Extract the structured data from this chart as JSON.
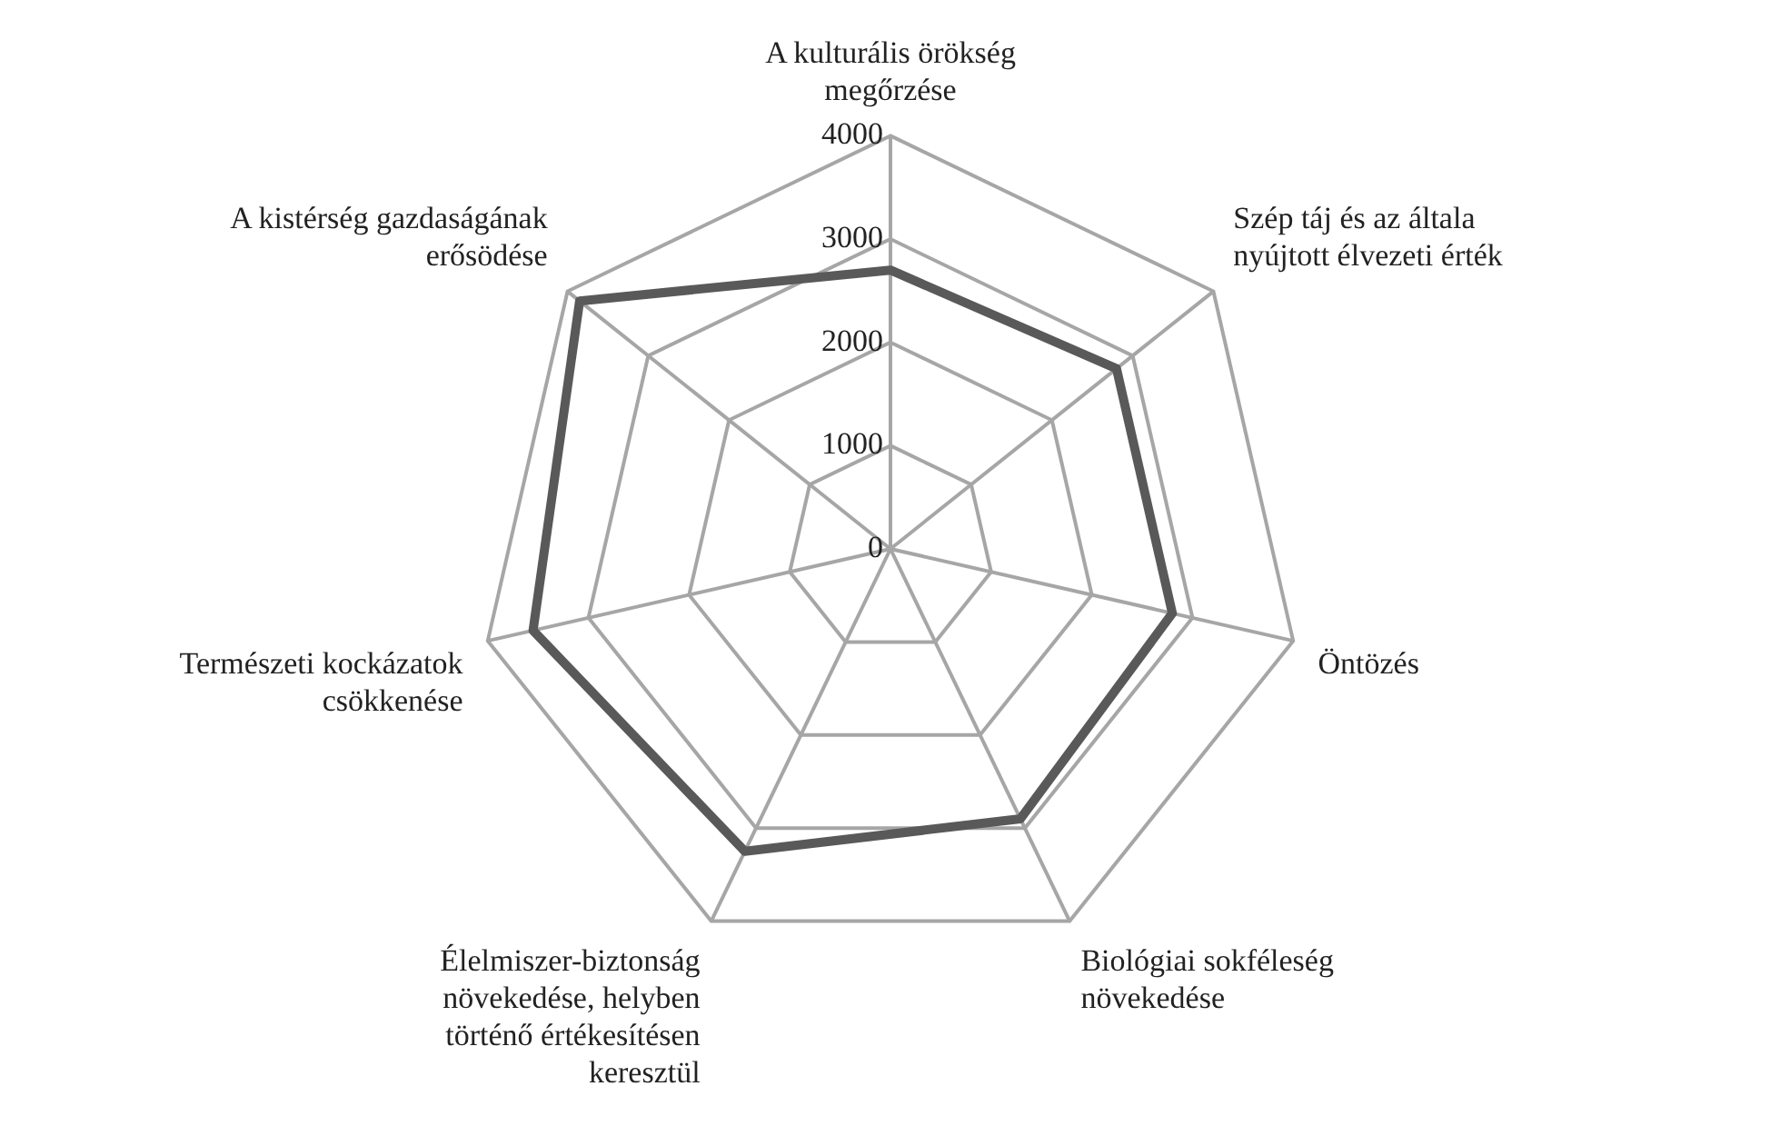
{
  "chart_data": {
    "type": "radar",
    "categories": [
      "A kulturális örökség megőrzése",
      "Szép táj és az általa nyújtott élvezeti érték",
      "Öntözés",
      "Biológiai sokféleség növekedése",
      "Élelmiszer-biztonság növekedése, helyben történő értékesítésen keresztül",
      "Természeti kockázatok csökkenése",
      "A kistérség gazdaságának erősödése"
    ],
    "series": [
      {
        "color": "#595959",
        "values": [
          2700,
          2800,
          2800,
          2900,
          3250,
          3550,
          3850
        ]
      }
    ],
    "ylim": [
      0,
      4000
    ],
    "yticks": [
      0,
      1000,
      2000,
      3000,
      4000
    ],
    "grid": true,
    "marker": "none"
  }
}
